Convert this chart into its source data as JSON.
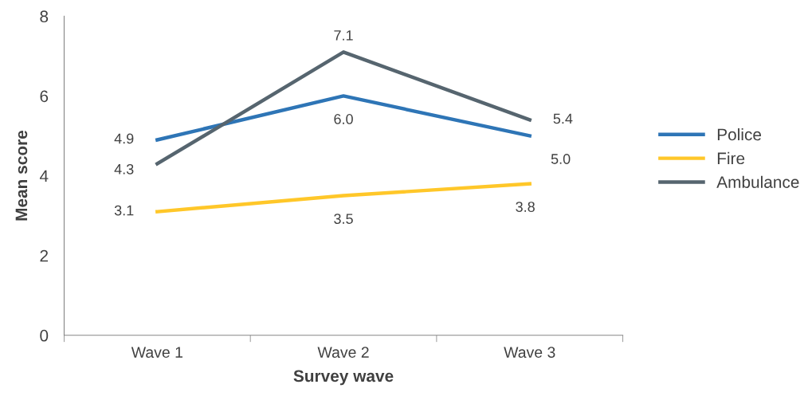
{
  "chart_data": {
    "type": "line",
    "xlabel": "Survey wave",
    "ylabel": "Mean score",
    "categories": [
      "Wave 1",
      "Wave 2",
      "Wave 3"
    ],
    "series": [
      {
        "name": "Police",
        "color": "#2e75b6",
        "values": [
          4.9,
          6.0,
          5.0
        ],
        "value_labels": [
          "4.9",
          "6.0",
          "5.0"
        ]
      },
      {
        "name": "Fire",
        "color": "#ffc729",
        "values": [
          3.1,
          3.5,
          3.8
        ],
        "value_labels": [
          "3.1",
          "3.5",
          "3.8"
        ]
      },
      {
        "name": "Ambulance",
        "color": "#56656f",
        "values": [
          4.3,
          7.1,
          5.4
        ],
        "value_labels": [
          "4.3",
          "7.1",
          "5.4"
        ]
      }
    ],
    "ylim": [
      0,
      8
    ],
    "yticks": [
      0,
      2,
      4,
      6,
      8
    ],
    "grid": false,
    "legend": "right",
    "marker": "none",
    "line_style": "solid"
  }
}
